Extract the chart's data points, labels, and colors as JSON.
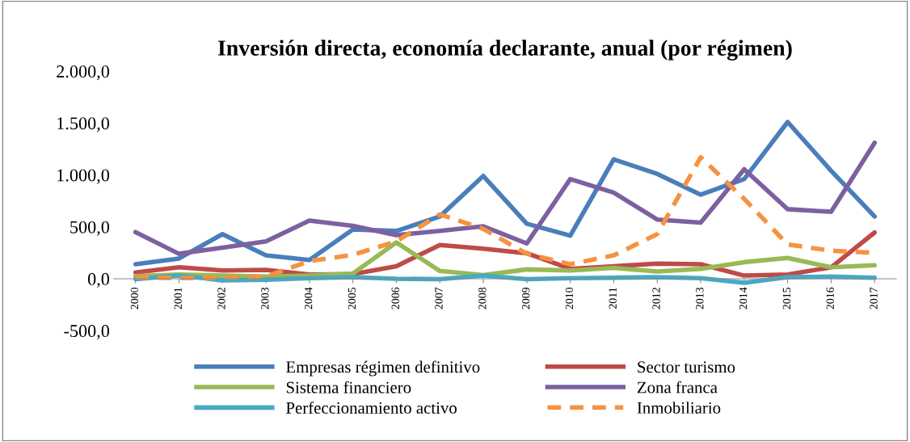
{
  "chart_data": {
    "type": "line",
    "title": "Inversión directa, economía declarante, anual (por régimen)",
    "categories": [
      "2000",
      "2001",
      "2002",
      "2003",
      "2004",
      "2005",
      "2006",
      "2007",
      "2008",
      "2009",
      "2010",
      "2011",
      "2012",
      "2013",
      "2014",
      "2015",
      "2016",
      "2017"
    ],
    "series": [
      {
        "name": "Empresas régimen definitivo",
        "color": "#4a7ebb",
        "values": [
          140,
          195,
          430,
          225,
          180,
          475,
          460,
          600,
          990,
          530,
          415,
          1150,
          1010,
          810,
          960,
          1510,
          1040,
          600
        ]
      },
      {
        "name": "Sector turismo",
        "color": "#be4b48",
        "values": [
          60,
          110,
          80,
          85,
          40,
          45,
          120,
          325,
          290,
          245,
          95,
          120,
          145,
          140,
          30,
          40,
          110,
          445
        ]
      },
      {
        "name": "Sistema financiero",
        "color": "#98b954",
        "values": [
          25,
          40,
          30,
          20,
          30,
          50,
          350,
          75,
          35,
          90,
          80,
          105,
          70,
          95,
          160,
          200,
          110,
          130
        ]
      },
      {
        "name": "Zona franca",
        "color": "#7d60a0",
        "values": [
          450,
          240,
          300,
          360,
          560,
          510,
          420,
          460,
          505,
          340,
          960,
          830,
          570,
          540,
          1055,
          670,
          645,
          1310
        ]
      },
      {
        "name": "Perfeccionamiento activo",
        "color": "#46aac5",
        "values": [
          -5,
          30,
          -15,
          -10,
          5,
          15,
          0,
          -5,
          30,
          -5,
          5,
          10,
          15,
          5,
          -40,
          15,
          20,
          10
        ]
      },
      {
        "name": "Inmobiliario",
        "color": "#f69240",
        "line_style": "dashed",
        "values": [
          15,
          5,
          10,
          20,
          170,
          230,
          360,
          620,
          480,
          240,
          140,
          225,
          430,
          1170,
          770,
          330,
          270,
          250
        ]
      }
    ],
    "ylim": [
      -500,
      2000
    ],
    "yticks": [
      {
        "value": -500,
        "label": "-500,0"
      },
      {
        "value": 0,
        "label": "0,0"
      },
      {
        "value": 500,
        "label": "500,0"
      },
      {
        "value": 1000,
        "label": "1.000,0"
      },
      {
        "value": 1500,
        "label": "1.500,0"
      },
      {
        "value": 2000,
        "label": "2.000,0"
      }
    ],
    "grid": false,
    "legend": "bottom",
    "marker": "none",
    "line_style": "solid"
  }
}
